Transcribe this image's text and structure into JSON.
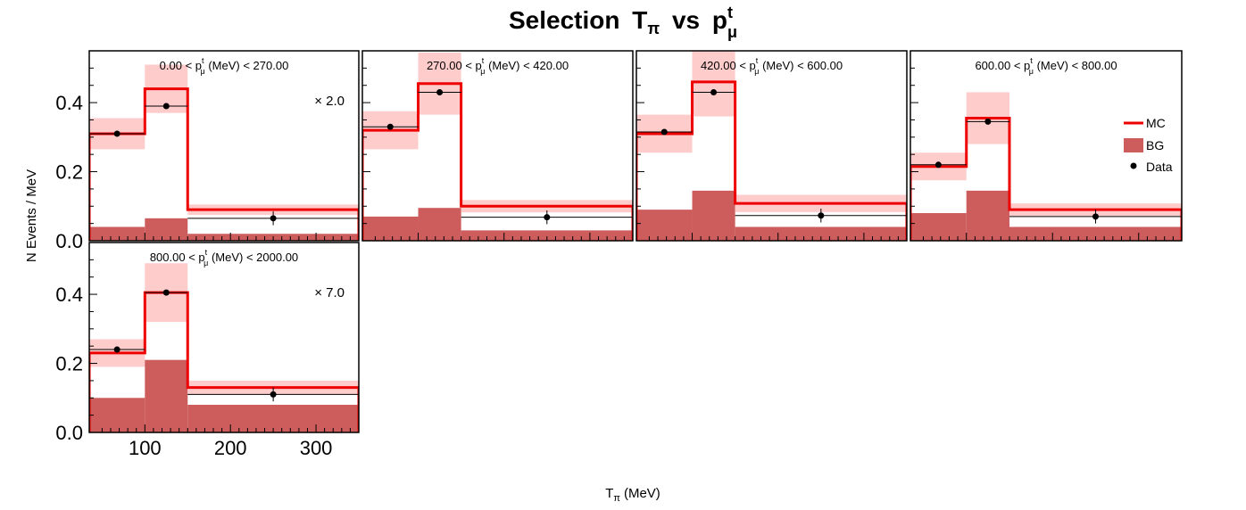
{
  "chart_data": {
    "type": "histogram",
    "title": "Selection",
    "title_t": "T",
    "title_pi": "π",
    "title_vs": "vs",
    "title_p": "p",
    "title_t_sup": "t",
    "title_mu": "μ",
    "xlabel": "T",
    "xlabel_sub": "π",
    "xlabel_unit": "(MeV)",
    "ylabel": "N Events / MeV",
    "xlim": [
      35,
      350
    ],
    "ylim": [
      0,
      0.55
    ],
    "x_ticks": [
      100,
      200,
      300
    ],
    "y_ticks": [
      "0.0",
      "0.2",
      "0.4"
    ],
    "bin_edges": [
      35,
      100,
      150,
      350
    ],
    "legend": {
      "position": "right",
      "entries": [
        {
          "label": "MC",
          "color": "#ee0000",
          "kind": "line"
        },
        {
          "label": "BG",
          "color": "#cd5c5c",
          "kind": "box"
        },
        {
          "label": "Data",
          "color": "#000000",
          "kind": "marker"
        }
      ]
    },
    "colors": {
      "mc": "#ee0000",
      "mc_band": "#ffcccc",
      "bg": "#cd5c5c",
      "data": "#000000"
    },
    "panels": [
      {
        "label_lo": "0.00",
        "label_hi": "270.00",
        "scale": "× 2.0",
        "mc": [
          0.31,
          0.44,
          0.09
        ],
        "mc_err": [
          0.045,
          0.07,
          0.015
        ],
        "bg": [
          0.04,
          0.065,
          0.02
        ],
        "data": [
          0.31,
          0.39,
          0.065
        ],
        "data_err": [
          0.005,
          0.005,
          0.02
        ]
      },
      {
        "label_lo": "270.00",
        "label_hi": "420.00",
        "scale": "",
        "mc": [
          0.32,
          0.455,
          0.1
        ],
        "mc_err": [
          0.055,
          0.09,
          0.018
        ],
        "bg": [
          0.07,
          0.095,
          0.03
        ],
        "data": [
          0.33,
          0.43,
          0.068
        ],
        "data_err": [
          0.005,
          0.005,
          0.02
        ]
      },
      {
        "label_lo": "420.00",
        "label_hi": "600.00",
        "scale": "",
        "mc": [
          0.31,
          0.46,
          0.108
        ],
        "mc_err": [
          0.055,
          0.1,
          0.025
        ],
        "bg": [
          0.09,
          0.145,
          0.04
        ],
        "data": [
          0.315,
          0.43,
          0.073
        ],
        "data_err": [
          0.005,
          0.005,
          0.02
        ]
      },
      {
        "label_lo": "600.00",
        "label_hi": "800.00",
        "scale": "",
        "mc": [
          0.215,
          0.355,
          0.09
        ],
        "mc_err": [
          0.04,
          0.075,
          0.018
        ],
        "bg": [
          0.08,
          0.145,
          0.04
        ],
        "data": [
          0.22,
          0.345,
          0.07
        ],
        "data_err": [
          0.005,
          0.005,
          0.02
        ]
      },
      {
        "label_lo": "800.00",
        "label_hi": "2000.00",
        "scale": "× 7.0",
        "mc": [
          0.23,
          0.405,
          0.13
        ],
        "mc_err": [
          0.04,
          0.085,
          0.02
        ],
        "bg": [
          0.1,
          0.21,
          0.08
        ],
        "data": [
          0.24,
          0.405,
          0.11
        ],
        "data_err": [
          0.005,
          0.005,
          0.02
        ]
      }
    ]
  }
}
